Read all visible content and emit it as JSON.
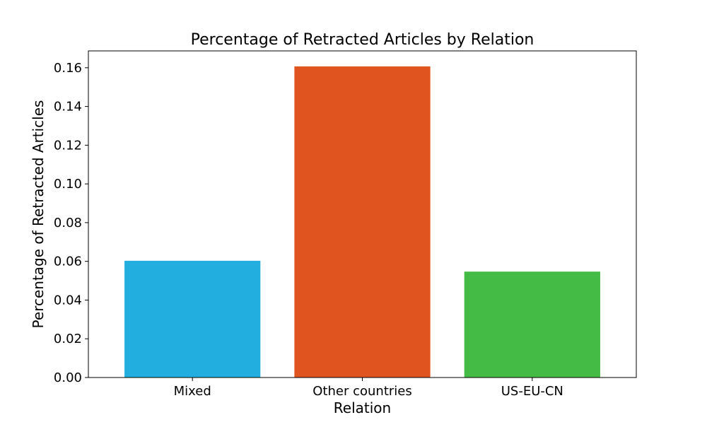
{
  "chart_data": {
    "type": "bar",
    "title": "Percentage of Retracted Articles by Relation",
    "xlabel": "Relation",
    "ylabel": "Percentage of Retracted Articles",
    "categories": [
      "Mixed",
      "Other countries",
      "US-EU-CN"
    ],
    "values": [
      0.0603,
      0.1607,
      0.0547
    ],
    "colors": [
      "#22afdf",
      "#e05420",
      "#44bb44"
    ],
    "ylim": [
      0,
      0.1687
    ],
    "yticks": [
      0.0,
      0.02,
      0.04,
      0.06,
      0.08,
      0.1,
      0.12,
      0.14,
      0.16
    ],
    "ytick_labels": [
      "0.00",
      "0.02",
      "0.04",
      "0.06",
      "0.08",
      "0.10",
      "0.12",
      "0.14",
      "0.16"
    ],
    "grid": false,
    "legend": "none"
  }
}
